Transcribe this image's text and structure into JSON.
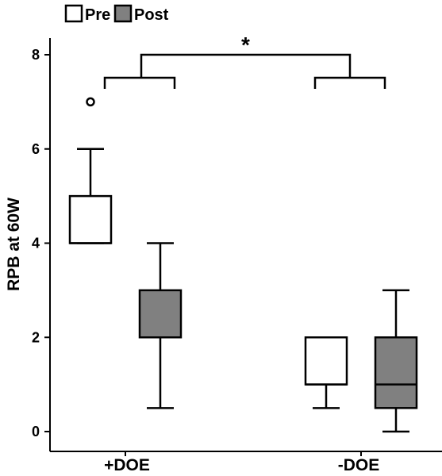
{
  "chart_data": {
    "type": "box",
    "ylabel": "RPB at 60W",
    "xlabel": "",
    "ylim": [
      0,
      8.5
    ],
    "yticks": [
      "0",
      "2",
      "4",
      "6",
      "8"
    ],
    "categories": [
      "+DOE",
      "-DOE"
    ],
    "series": [
      {
        "name": "Pre",
        "color": "#ffffff",
        "boxes": [
          {
            "category": "+DOE",
            "whisker_low": 4,
            "q1": 4,
            "median": 4,
            "q3": 5,
            "whisker_high": 6,
            "outliers": [
              7
            ]
          },
          {
            "category": "-DOE",
            "whisker_low": 0.5,
            "q1": 1,
            "median": 1,
            "q3": 2,
            "whisker_high": 2,
            "outliers": []
          }
        ]
      },
      {
        "name": "Post",
        "color": "#808080",
        "boxes": [
          {
            "category": "+DOE",
            "whisker_low": 0.5,
            "q1": 2,
            "median": 2,
            "q3": 3,
            "whisker_high": 4,
            "outliers": []
          },
          {
            "category": "-DOE",
            "whisker_low": 0,
            "q1": 0.5,
            "median": 1,
            "q3": 2,
            "whisker_high": 3,
            "outliers": []
          }
        ]
      }
    ],
    "legend": {
      "position": "top-left",
      "items": [
        "Pre",
        "Post"
      ]
    },
    "significance": {
      "label": "*",
      "between": [
        "+DOE",
        "-DOE"
      ]
    },
    "grid": false
  }
}
